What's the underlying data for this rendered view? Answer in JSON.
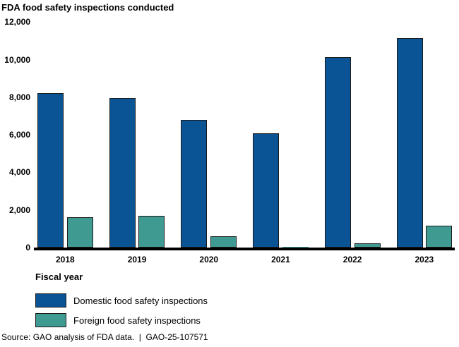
{
  "chart_data": {
    "type": "bar",
    "title": "FDA food safety inspections conducted",
    "xlabel": "Fiscal year",
    "ylabel": "",
    "categories": [
      "2018",
      "2019",
      "2020",
      "2021",
      "2022",
      "2023"
    ],
    "series": [
      {
        "name": "Domestic food safety inspections",
        "color": "#0a5496",
        "values": [
          8200,
          7950,
          6800,
          6080,
          10140,
          11140
        ]
      },
      {
        "name": "Foreign food safety inspections",
        "color": "#3f9a92",
        "values": [
          1620,
          1700,
          590,
          25,
          240,
          1150
        ]
      }
    ],
    "ylim": [
      0,
      12000
    ],
    "yticks": [
      {
        "value": 0,
        "label": "0"
      },
      {
        "value": 2000,
        "label": "2,000"
      },
      {
        "value": 4000,
        "label": "4,000"
      },
      {
        "value": 6000,
        "label": "6,000"
      },
      {
        "value": 8000,
        "label": "8,000"
      },
      {
        "value": 10000,
        "label": "10,000"
      },
      {
        "value": 12000,
        "label": "12,000"
      }
    ],
    "grid": false,
    "legend_position": "bottom-left"
  },
  "source_line": "Source: GAO analysis of FDA data.  |  GAO-25-107571"
}
